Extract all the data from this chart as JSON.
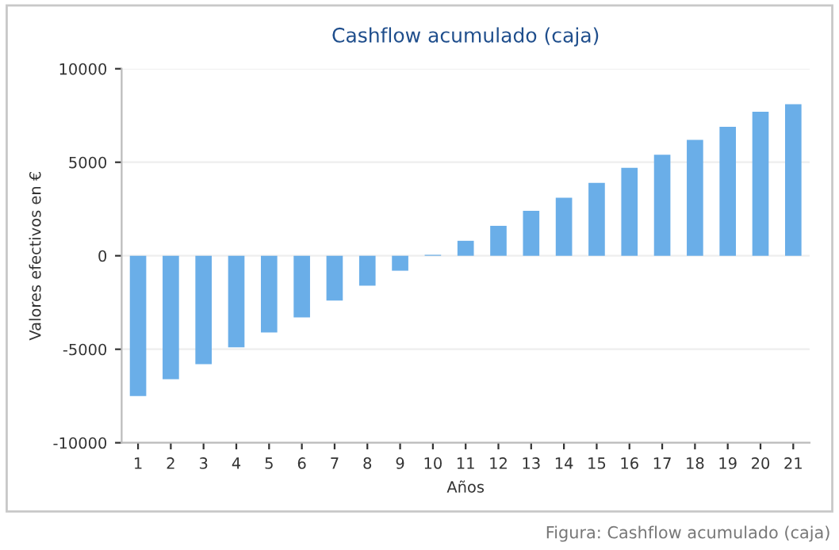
{
  "chart_data": {
    "type": "bar",
    "title": "Cashflow acumulado (caja)",
    "xlabel": "Años",
    "ylabel": "Valores efectivos en €",
    "categories": [
      "1",
      "2",
      "3",
      "4",
      "5",
      "6",
      "7",
      "8",
      "9",
      "10",
      "11",
      "12",
      "13",
      "14",
      "15",
      "16",
      "17",
      "18",
      "19",
      "20",
      "21"
    ],
    "values": [
      -7500,
      -6600,
      -5800,
      -4900,
      -4100,
      -3300,
      -2400,
      -1600,
      -800,
      50,
      800,
      1600,
      2400,
      3100,
      3900,
      4700,
      5400,
      6200,
      6900,
      7700,
      8100
    ],
    "color": "#6aaee8",
    "ylim": [
      -10000,
      10000
    ],
    "yticks": [
      -10000,
      -5000,
      0,
      5000,
      10000
    ],
    "grid": "y",
    "annotations": [
      "Figura: Cashflow acumulado (caja)"
    ]
  }
}
